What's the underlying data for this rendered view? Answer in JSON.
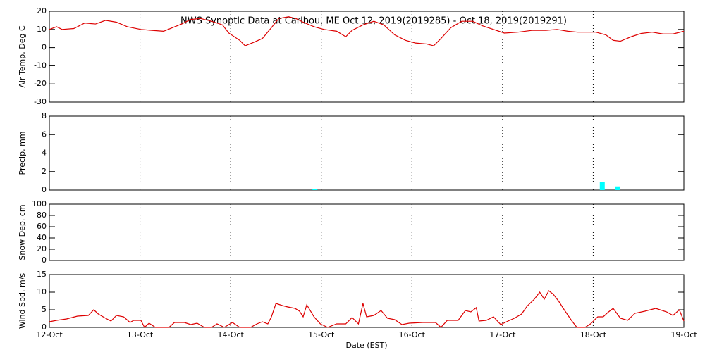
{
  "chart_data": [
    {
      "type": "line",
      "title": "NWS Synoptic Data at Caribou, ME   Oct 12, 2019(2019285) - Oct 18, 2019(2019291)",
      "ylabel": "Air Temp, Deg C",
      "ylim": [
        -30,
        20
      ],
      "yticks": [
        -30,
        -20,
        -10,
        0,
        10,
        20
      ],
      "grid": true,
      "color": "#dd0000",
      "x": [
        0,
        0.08,
        0.14,
        0.27,
        0.39,
        0.51,
        0.62,
        0.74,
        0.86,
        1.01,
        1.13,
        1.26,
        1.36,
        1.46,
        1.56,
        1.67,
        1.79,
        1.91,
        1.98,
        2.1,
        2.16,
        2.26,
        2.35,
        2.45,
        2.53,
        2.64,
        2.72,
        2.8,
        2.92,
        3.03,
        3.17,
        3.27,
        3.34,
        3.46,
        3.58,
        3.69,
        3.81,
        3.93,
        4.04,
        4.16,
        4.24,
        4.32,
        4.43,
        4.55,
        4.67,
        4.78,
        4.9,
        5.02,
        5.17,
        5.33,
        5.48,
        5.6,
        5.72,
        5.83,
        6.03,
        6.14,
        6.22,
        6.3,
        6.42,
        6.53,
        6.65,
        6.77,
        6.88,
        7.0
      ],
      "values": [
        10,
        11.5,
        10,
        10.5,
        13.5,
        13,
        15,
        14,
        11.5,
        10,
        9.5,
        9,
        11,
        13,
        15.5,
        16,
        14.5,
        12.5,
        8,
        4,
        1,
        3,
        5,
        11,
        16,
        17,
        16,
        14,
        11.5,
        10,
        9,
        6,
        9.5,
        12.5,
        14.5,
        12.5,
        7,
        4,
        2.5,
        2,
        1,
        5,
        11,
        14.5,
        14.5,
        12,
        10,
        8,
        8.5,
        9.5,
        9.5,
        10,
        9,
        8.5,
        8.5,
        7,
        4,
        3.5,
        6,
        7.8,
        8.5,
        7.5,
        7.5,
        9
      ]
    },
    {
      "type": "bar",
      "ylabel": "Precip, mm",
      "ylim": [
        0,
        8
      ],
      "yticks": [
        0,
        2,
        4,
        6,
        8
      ],
      "grid": true,
      "color": "#00ffff",
      "x": [
        2.93,
        6.1,
        6.27
      ],
      "values": [
        0.15,
        0.9,
        0.4
      ]
    },
    {
      "type": "empty",
      "ylabel": "Snow Dep, cm",
      "ylim": [
        0,
        100
      ],
      "yticks": [
        0,
        20,
        40,
        60,
        80,
        100
      ],
      "grid": true
    },
    {
      "type": "line",
      "ylabel": "Wind Spd, m/s",
      "xlabel": "Date (EST)",
      "ylim": [
        0,
        15
      ],
      "yticks": [
        0,
        5,
        10,
        15
      ],
      "grid": true,
      "color": "#dd0000",
      "xlim": [
        0,
        7
      ],
      "xticks": [
        {
          "value": 0,
          "label": "12-Oct"
        },
        {
          "value": 1,
          "label": "13-Oct"
        },
        {
          "value": 2,
          "label": "14-Oct"
        },
        {
          "value": 3,
          "label": "15-Oct"
        },
        {
          "value": 4,
          "label": "16-Oct"
        },
        {
          "value": 5,
          "label": "17-Oct"
        },
        {
          "value": 6,
          "label": "18-Oct"
        },
        {
          "value": 7,
          "label": "19-Oct"
        }
      ],
      "x": [
        0,
        0.08,
        0.19,
        0.31,
        0.43,
        0.49,
        0.54,
        0.62,
        0.68,
        0.74,
        0.82,
        0.89,
        0.93,
        1.01,
        1.05,
        1.1,
        1.17,
        1.32,
        1.38,
        1.49,
        1.56,
        1.63,
        1.71,
        1.79,
        1.85,
        1.93,
        2.02,
        2.1,
        2.22,
        2.29,
        2.35,
        2.41,
        2.45,
        2.5,
        2.57,
        2.63,
        2.71,
        2.76,
        2.8,
        2.84,
        2.92,
        2.99,
        3.07,
        3.17,
        3.27,
        3.34,
        3.41,
        3.46,
        3.5,
        3.58,
        3.66,
        3.73,
        3.81,
        3.89,
        3.97,
        4.12,
        4.26,
        4.32,
        4.39,
        4.51,
        4.59,
        4.65,
        4.71,
        4.74,
        4.82,
        4.9,
        4.98,
        5.06,
        5.13,
        5.21,
        5.27,
        5.35,
        5.41,
        5.46,
        5.51,
        5.56,
        5.62,
        5.68,
        5.76,
        5.82,
        5.91,
        5.97,
        6.05,
        6.11,
        6.16,
        6.22,
        6.3,
        6.38,
        6.46,
        6.57,
        6.69,
        6.81,
        6.88,
        6.95,
        7.0
      ],
      "values": [
        1.6,
        2,
        2.4,
        3.2,
        3.4,
        5,
        3.8,
        2.6,
        1.8,
        3.4,
        3,
        1.4,
        2,
        2,
        0,
        1.2,
        0,
        0,
        1.4,
        1.4,
        0.8,
        1.2,
        0,
        0,
        1,
        0,
        1.4,
        0,
        0,
        1,
        1.6,
        1,
        3,
        6.8,
        6.2,
        5.8,
        5.4,
        4.6,
        3,
        6.4,
        3,
        1,
        0,
        1,
        1,
        2.8,
        1,
        6.8,
        3,
        3.4,
        4.8,
        2.6,
        2.2,
        0.8,
        1.2,
        1.4,
        1.4,
        0,
        2,
        2,
        4.8,
        4.4,
        5.6,
        1.8,
        2,
        3,
        0.8,
        1.8,
        2.6,
        3.8,
        6,
        8,
        10,
        8,
        10.4,
        9.4,
        7.4,
        5,
        2,
        0,
        0,
        1,
        3,
        3,
        4.2,
        5.4,
        2.6,
        2,
        4,
        4.6,
        5.4,
        4.4,
        3.4,
        5,
        1.8
      ]
    }
  ]
}
